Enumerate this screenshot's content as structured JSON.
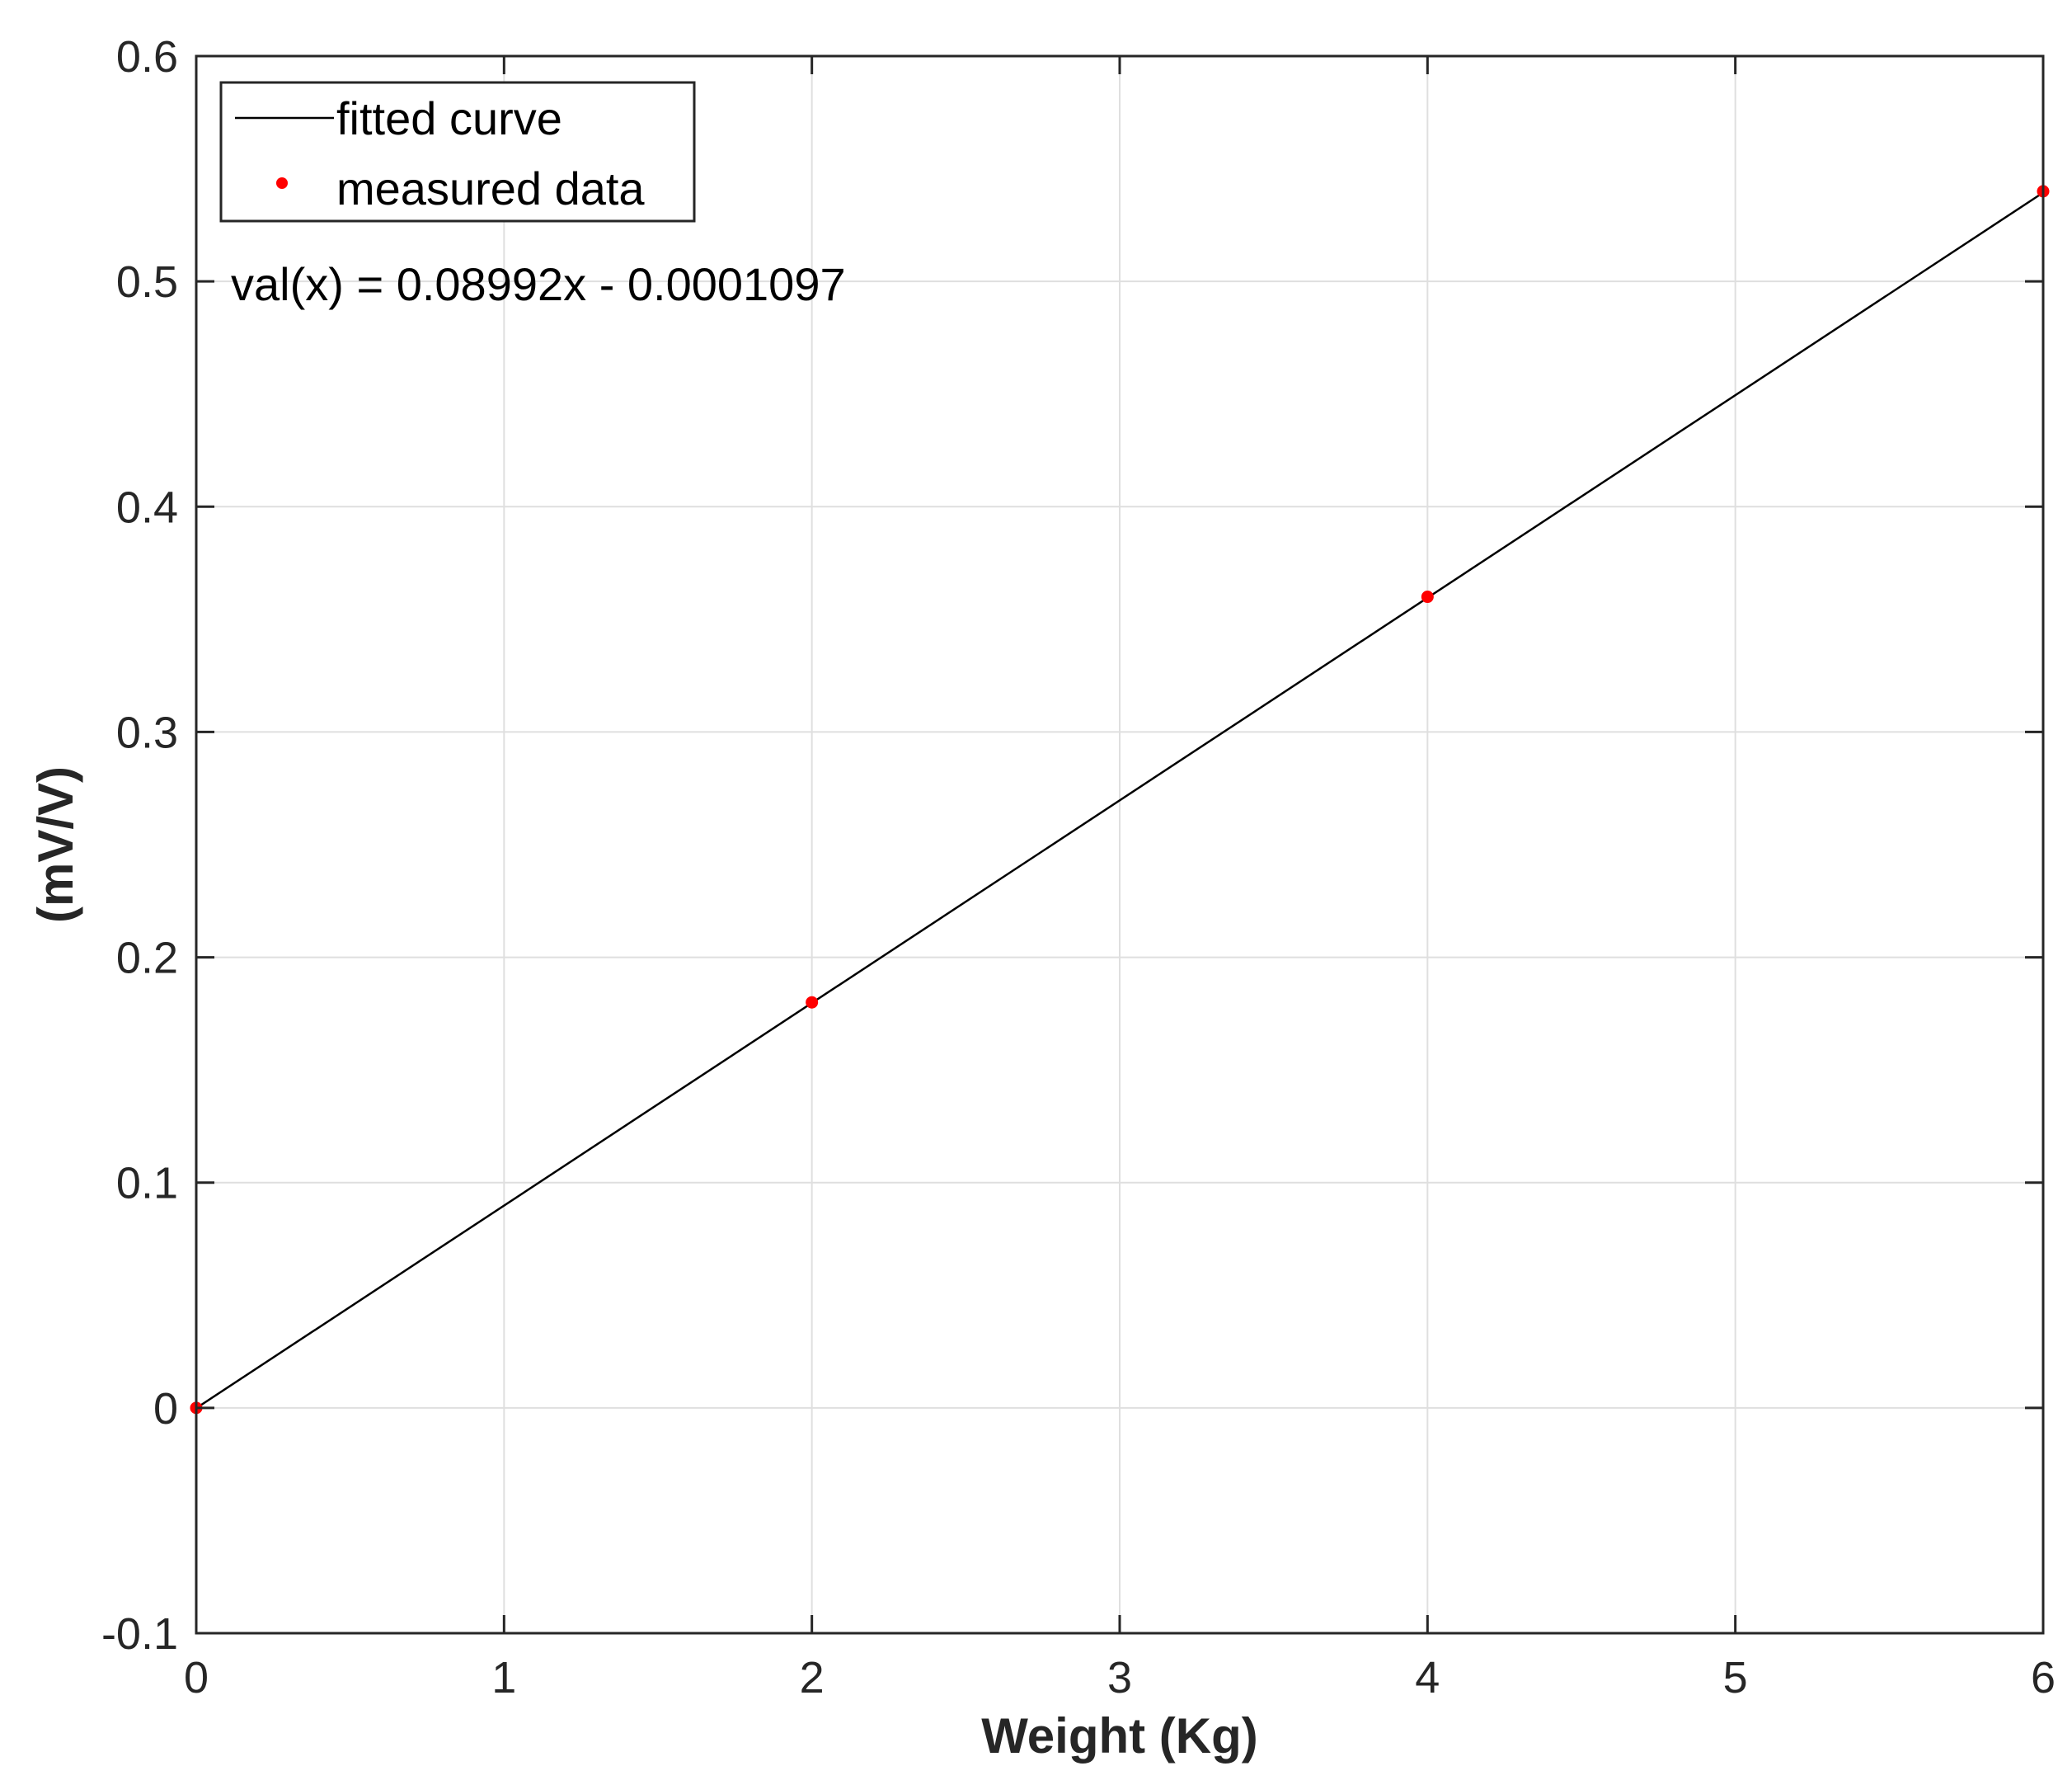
{
  "chart_data": {
    "type": "line",
    "xlabel": "Weight (Kg)",
    "ylabel": "(mV/V)",
    "xlim": [
      0,
      6
    ],
    "ylim": [
      -0.1,
      0.6
    ],
    "x_ticks": [
      "0",
      "1",
      "2",
      "3",
      "4",
      "5",
      "6"
    ],
    "y_ticks": [
      "-0.1",
      "0",
      "0.1",
      "0.2",
      "0.3",
      "0.4",
      "0.5",
      "0.6"
    ],
    "grid": true,
    "legend_position": "top-left",
    "series": [
      {
        "name": "fitted curve",
        "kind": "line",
        "color": "#000000",
        "x": [
          0,
          6
        ],
        "y": [
          -0.0001097,
          0.5394103
        ]
      },
      {
        "name": "measured data",
        "kind": "scatter",
        "color": "#ff0000",
        "x": [
          0,
          2,
          4,
          6
        ],
        "y": [
          0,
          0.18,
          0.36,
          0.54
        ]
      }
    ],
    "annotations": [
      "val(x) = 0.08992x - 0.0001097"
    ]
  }
}
